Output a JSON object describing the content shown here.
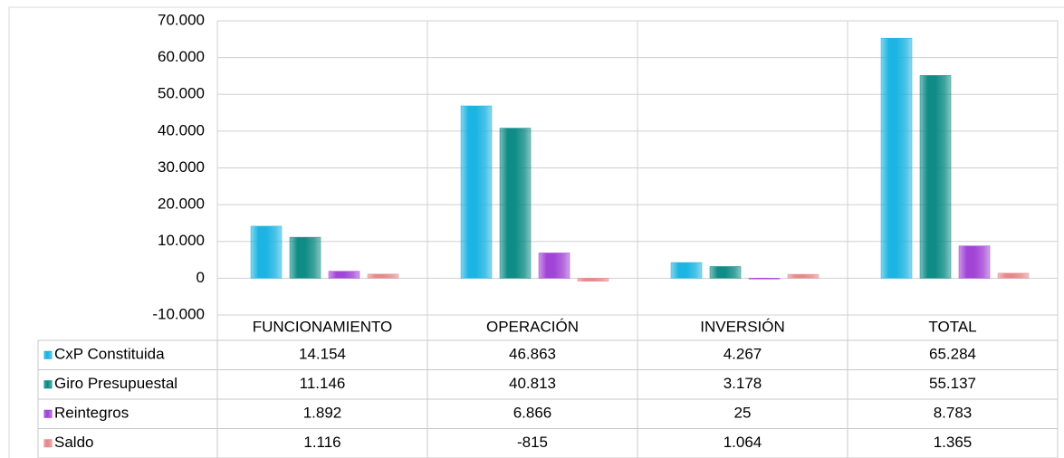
{
  "chart_data": {
    "type": "bar",
    "categories": [
      "FUNCIONAMIENTO",
      "OPERACIÓN",
      "INVERSIÓN",
      "TOTAL"
    ],
    "series": [
      {
        "name": "CxP Constituida",
        "color": "#1cb4e2",
        "values": [
          14154,
          46863,
          4267,
          65284
        ],
        "value_labels": [
          "14.154",
          "46.863",
          "4.267",
          "65.284"
        ]
      },
      {
        "name": "Giro Presupuestal",
        "color": "#0f8c86",
        "values": [
          11146,
          40813,
          3178,
          55137
        ],
        "value_labels": [
          "11.146",
          "40.813",
          "3.178",
          "55.137"
        ]
      },
      {
        "name": "Reintegros",
        "color": "#a245d6",
        "values": [
          1892,
          6866,
          25,
          8783
        ],
        "value_labels": [
          "1.892",
          "6.866",
          "25",
          "8.783"
        ]
      },
      {
        "name": "Saldo",
        "color": "#e58a8a",
        "values": [
          1116,
          -815,
          1064,
          1365
        ],
        "value_labels": [
          "1.116",
          "-815",
          "1.064",
          "1.365"
        ]
      }
    ],
    "ylim": [
      -10000,
      70000
    ],
    "yticks": [
      {
        "value": -10000,
        "label": "-10.000"
      },
      0,
      {
        "value": 10000,
        "label": "10.000"
      },
      {
        "value": 20000,
        "label": "20.000"
      },
      {
        "value": 30000,
        "label": "30.000"
      },
      {
        "value": 40000,
        "label": "40.000"
      },
      {
        "value": 50000,
        "label": "50.000"
      },
      {
        "value": 60000,
        "label": "60.000"
      },
      {
        "value": 70000,
        "label": "70.000"
      }
    ],
    "grid": true
  }
}
